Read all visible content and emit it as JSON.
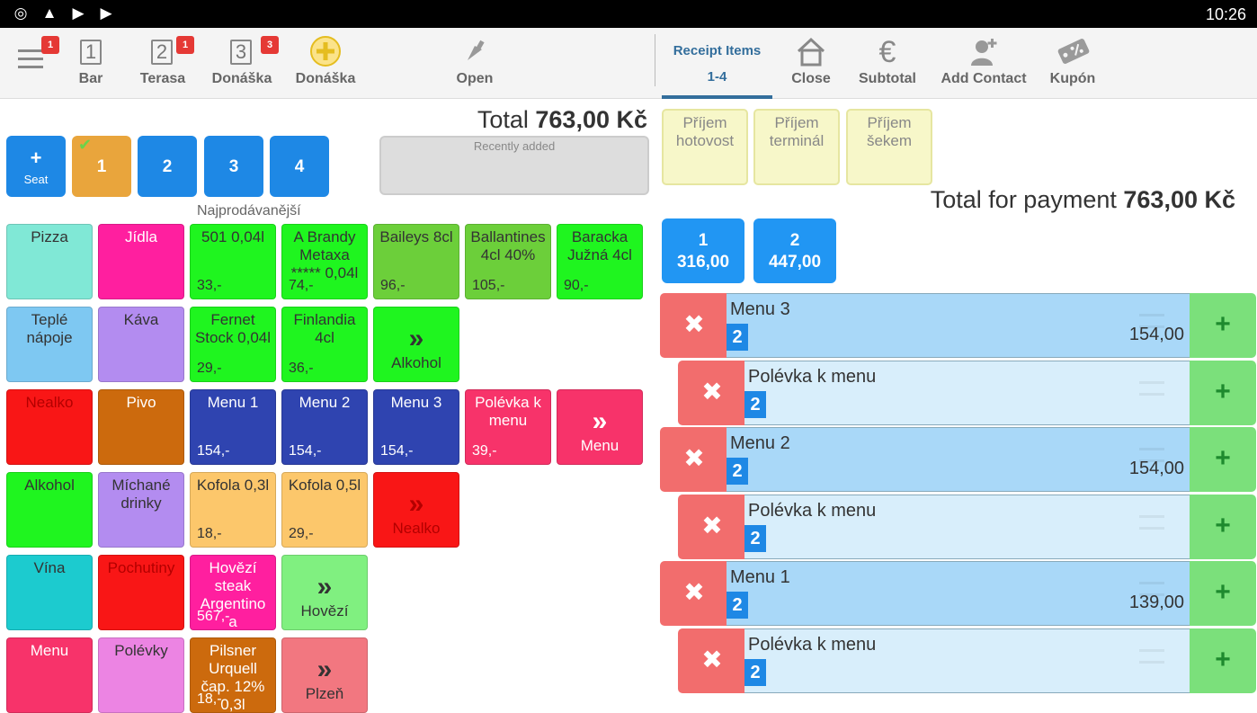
{
  "status_bar": {
    "time": "10:26"
  },
  "topbar": {
    "bar": {
      "label": "Bar",
      "number": "1"
    },
    "terasa": {
      "label": "Terasa",
      "number": "2",
      "badge": "1"
    },
    "donaska3": {
      "label": "Donáška",
      "number": "3",
      "badge": "3"
    },
    "donaska_new": {
      "label": "Donáška"
    },
    "open": {
      "label": "Open"
    },
    "menu_badge": "1",
    "receipt_items": {
      "label": "Receipt Items",
      "range": "1-4"
    },
    "close": {
      "label": "Close"
    },
    "subtotal": {
      "label": "Subtotal"
    },
    "add_contact": {
      "label": "Add Contact"
    },
    "kupon": {
      "label": "Kupón"
    }
  },
  "order": {
    "total_label": "Total",
    "total_value": "763,00 Kč",
    "seat_add": {
      "plus": "+",
      "label": "Seat"
    },
    "seats": [
      "1",
      "2",
      "3",
      "4"
    ],
    "recently_added": "Recently added",
    "bestsellers_label": "Najprodávanější"
  },
  "tiles": [
    {
      "label": "Pizza",
      "price": "",
      "color": "#80e8d6"
    },
    {
      "label": "Jídla",
      "price": "",
      "color": "#ff1f9f"
    },
    {
      "label": "501 0,04l",
      "price": "33,-",
      "color": "#1ff51f"
    },
    {
      "label": "A Brandy Metaxa ***** 0,04l",
      "price": "74,-",
      "color": "#1ff51f"
    },
    {
      "label": "Baileys 8cl",
      "price": "96,-",
      "color": "#6ccf3a"
    },
    {
      "label": "Ballantines 4cl 40%",
      "price": "105,-",
      "color": "#6ccf3a"
    },
    {
      "label": "Baracka Južná 4cl",
      "price": "90,-",
      "color": "#1ff51f"
    },
    {
      "label": "Teplé nápoje",
      "price": "",
      "color": "#7ec8f2"
    },
    {
      "label": "Káva",
      "price": "",
      "color": "#b38cf0"
    },
    {
      "label": "Fernet Stock 0,04l",
      "price": "29,-",
      "color": "#1ff51f"
    },
    {
      "label": "Finlandia 4cl",
      "price": "36,-",
      "color": "#1ff51f"
    },
    {
      "label": "Alkohol",
      "price": "",
      "color": "#1ff51f",
      "arrow": "»"
    },
    {
      "label": "Nealko",
      "price": "",
      "color": "#f91616"
    },
    {
      "label": "Pivo",
      "price": "",
      "color": "#cc6a0d"
    },
    {
      "label": "Menu 1",
      "price": "154,-",
      "color": "#2f44b0"
    },
    {
      "label": "Menu 2",
      "price": "154,-",
      "color": "#2f44b0"
    },
    {
      "label": "Menu 3",
      "price": "154,-",
      "color": "#2f44b0"
    },
    {
      "label": "Polévka k menu",
      "price": "39,-",
      "color": "#f7336a"
    },
    {
      "label": "Menu",
      "price": "",
      "color": "#f7336a",
      "arrow": "»"
    },
    {
      "label": "Alkohol",
      "price": "",
      "color": "#1ff51f"
    },
    {
      "label": "Míchané drinky",
      "price": "",
      "color": "#b38cf0"
    },
    {
      "label": "Kofola 0,3l",
      "price": "18,-",
      "color": "#fcc76b"
    },
    {
      "label": "Kofola 0,5l",
      "price": "29,-",
      "color": "#fcc76b"
    },
    {
      "label": "Nealko",
      "price": "",
      "color": "#f91616",
      "arrow": "»"
    },
    {
      "label": "Vína",
      "price": "",
      "color": "#1ccbcf"
    },
    {
      "label": "Pochutiny",
      "price": "",
      "color": "#f91616"
    },
    {
      "label": "Hovězí steak Argentino a",
      "price": "567,-",
      "color": "#ff1f9f"
    },
    {
      "label": "Hovězí",
      "price": "",
      "color": "#80f080",
      "arrow": "»"
    },
    {
      "label": "Menu",
      "price": "",
      "color": "#f7336a"
    },
    {
      "label": "Polévky",
      "price": "",
      "color": "#ec84e3"
    },
    {
      "label": "Pilsner Urquell čap. 12% 0,3l",
      "price": "18,-",
      "color": "#cc6a0d"
    },
    {
      "label": "Plzeň",
      "price": "",
      "color": "#f27780",
      "arrow": "»"
    }
  ],
  "payment": {
    "methods": [
      "Příjem hotovost",
      "Příjem terminál",
      "Příjem šekem"
    ],
    "total_label": "Total for payment",
    "total_value": "763,00 Kč",
    "splits": [
      {
        "num": "1",
        "amount": "316,00"
      },
      {
        "num": "2",
        "amount": "447,00"
      }
    ]
  },
  "receipt": [
    {
      "name": "Menu 3",
      "qty": "2",
      "amount": "154,00",
      "sub": false
    },
    {
      "name": "Polévka k menu",
      "qty": "2",
      "amount": "",
      "sub": true
    },
    {
      "name": "Menu 2",
      "qty": "2",
      "amount": "154,00",
      "sub": false
    },
    {
      "name": "Polévka k menu",
      "qty": "2",
      "amount": "",
      "sub": true
    },
    {
      "name": "Menu 1",
      "qty": "2",
      "amount": "139,00",
      "sub": false
    },
    {
      "name": "Polévka k menu",
      "qty": "2",
      "amount": "",
      "sub": true
    }
  ]
}
